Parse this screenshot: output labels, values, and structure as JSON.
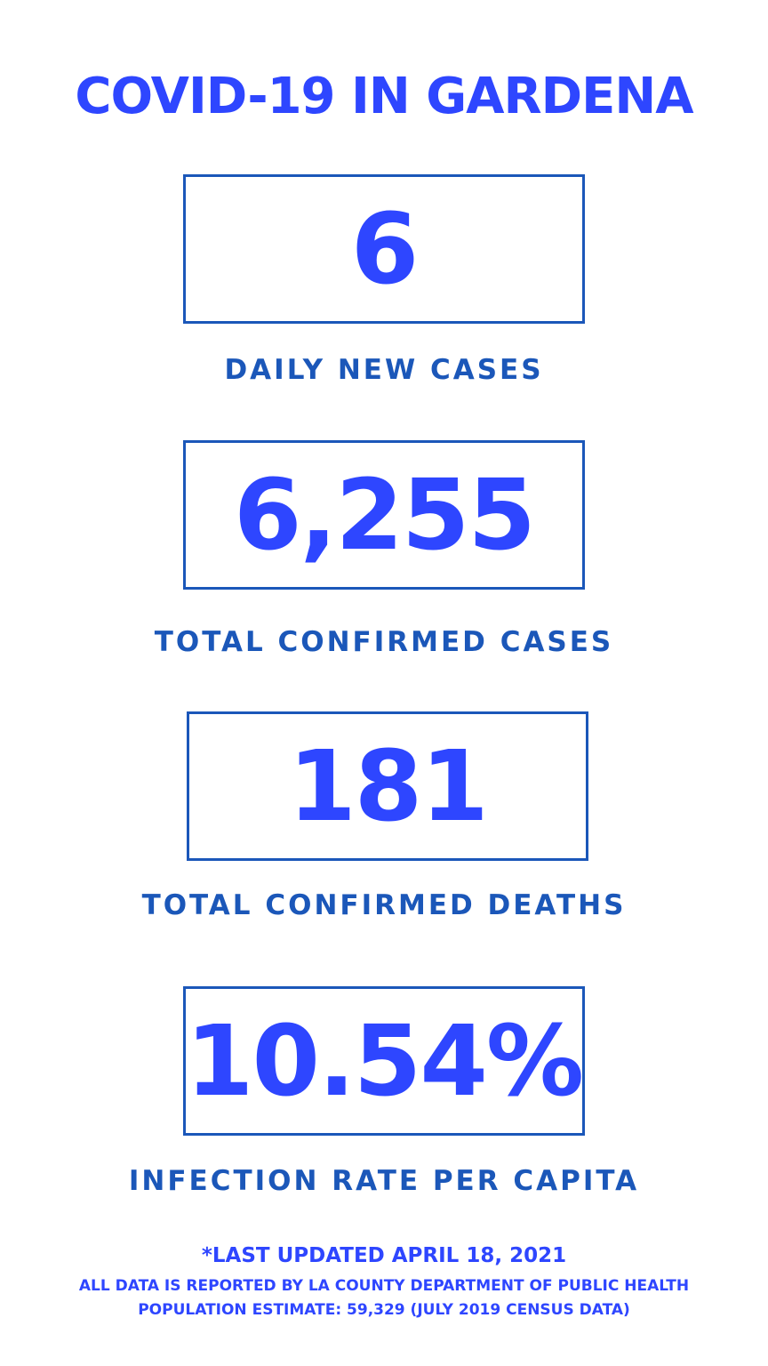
{
  "header": {
    "title": "COVID-19 IN GARDENA"
  },
  "stats": [
    {
      "value": "6",
      "label": "DAILY NEW CASES"
    },
    {
      "value": "6,255",
      "label": "TOTAL CONFIRMED CASES"
    },
    {
      "value": "181",
      "label": "TOTAL CONFIRMED DEATHS"
    },
    {
      "value": "10.54%",
      "label": "INFECTION RATE PER CAPITA"
    }
  ],
  "footer": {
    "updated": "*LAST UPDATED APRIL 18, 2021",
    "source": "ALL DATA IS REPORTED BY LA COUNTY DEPARTMENT OF PUBLIC HEALTH",
    "population": "POPULATION ESTIMATE: 59,329 (JULY 2019 CENSUS DATA)"
  }
}
